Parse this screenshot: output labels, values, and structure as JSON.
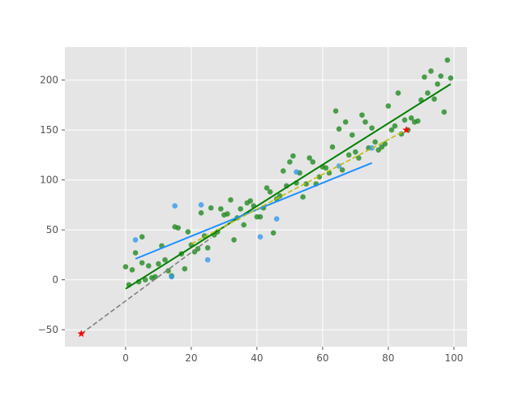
{
  "chart_data": {
    "type": "scatter",
    "title": "",
    "xlabel": "",
    "ylabel": "",
    "xlim": [
      -18.5,
      104
    ],
    "ylim": [
      -67,
      233
    ],
    "x_ticks": [
      0,
      20,
      40,
      60,
      80,
      100
    ],
    "y_ticks": [
      -50,
      0,
      50,
      100,
      150,
      200
    ],
    "x_tick_labels": [
      "0",
      "20",
      "40",
      "60",
      "80",
      "100"
    ],
    "y_tick_labels": [
      "−50",
      "0",
      "50",
      "100",
      "150",
      "200"
    ],
    "grid": true,
    "style": "ggplot",
    "colors": {
      "background": "#e5e5e5",
      "grid": "#ffffff",
      "tick_label": "#555555",
      "green_points": "#228b22",
      "blue_points": "#3399ee",
      "green_line": "#008000",
      "blue_line": "#1e90ff",
      "yellow_dashed": "#bfbf00",
      "gray_dashed": "#808080",
      "star": "#ff0000"
    },
    "series": [
      {
        "kind": "scatter",
        "color_key": "green_points",
        "points": [
          [
            0,
            13
          ],
          [
            1,
            -5
          ],
          [
            2,
            10
          ],
          [
            3,
            27
          ],
          [
            4,
            -2
          ],
          [
            5,
            17
          ],
          [
            5,
            43
          ],
          [
            6,
            0
          ],
          [
            7,
            14
          ],
          [
            8,
            2
          ],
          [
            9,
            3
          ],
          [
            10,
            16
          ],
          [
            11,
            34
          ],
          [
            12,
            20
          ],
          [
            13,
            9
          ],
          [
            14,
            4
          ],
          [
            15,
            53
          ],
          [
            16,
            52
          ],
          [
            17,
            26
          ],
          [
            18,
            11
          ],
          [
            19,
            48
          ],
          [
            20,
            35
          ],
          [
            21,
            28
          ],
          [
            22,
            31
          ],
          [
            23,
            67
          ],
          [
            24,
            44
          ],
          [
            25,
            32
          ],
          [
            26,
            72
          ],
          [
            27,
            45
          ],
          [
            28,
            48
          ],
          [
            29,
            71
          ],
          [
            30,
            65
          ],
          [
            31,
            66
          ],
          [
            32,
            80
          ],
          [
            33,
            40
          ],
          [
            34,
            62
          ],
          [
            35,
            71
          ],
          [
            36,
            55
          ],
          [
            37,
            77
          ],
          [
            38,
            79
          ],
          [
            39,
            74
          ],
          [
            40,
            63
          ],
          [
            41,
            63
          ],
          [
            42,
            72
          ],
          [
            43,
            92
          ],
          [
            44,
            88
          ],
          [
            45,
            47
          ],
          [
            46,
            81
          ],
          [
            47,
            84
          ],
          [
            48,
            109
          ],
          [
            49,
            94
          ],
          [
            50,
            118
          ],
          [
            51,
            124
          ],
          [
            52,
            97
          ],
          [
            53,
            107
          ],
          [
            54,
            83
          ],
          [
            55,
            96
          ],
          [
            56,
            122
          ],
          [
            57,
            118
          ],
          [
            58,
            96
          ],
          [
            59,
            103
          ],
          [
            60,
            113
          ],
          [
            61,
            112
          ],
          [
            62,
            107
          ],
          [
            63,
            133
          ],
          [
            64,
            169
          ],
          [
            65,
            151
          ],
          [
            66,
            110
          ],
          [
            67,
            158
          ],
          [
            68,
            125
          ],
          [
            69,
            145
          ],
          [
            70,
            128
          ],
          [
            71,
            122
          ],
          [
            72,
            165
          ],
          [
            73,
            158
          ],
          [
            74,
            132
          ],
          [
            75,
            152
          ],
          [
            76,
            138
          ],
          [
            77,
            130
          ],
          [
            78,
            133
          ],
          [
            79,
            136
          ],
          [
            80,
            174
          ],
          [
            81,
            150
          ],
          [
            82,
            154
          ],
          [
            83,
            187
          ],
          [
            84,
            146
          ],
          [
            85,
            160
          ],
          [
            86,
            150
          ],
          [
            87,
            162
          ],
          [
            88,
            158
          ],
          [
            89,
            159
          ],
          [
            90,
            180
          ],
          [
            91,
            203
          ],
          [
            92,
            187
          ],
          [
            93,
            209
          ],
          [
            94,
            181
          ],
          [
            95,
            196
          ],
          [
            96,
            204
          ],
          [
            97,
            168
          ],
          [
            98,
            220
          ],
          [
            99,
            202
          ]
        ]
      },
      {
        "kind": "scatter",
        "color_key": "blue_points",
        "points": [
          [
            3,
            40
          ],
          [
            14,
            3
          ],
          [
            15,
            74
          ],
          [
            23,
            75
          ],
          [
            25,
            20
          ],
          [
            41,
            43
          ],
          [
            46,
            61
          ],
          [
            52,
            108
          ],
          [
            65,
            114
          ],
          [
            75,
            132
          ]
        ]
      },
      {
        "kind": "line",
        "color_key": "green_line",
        "dashed": false,
        "points": [
          [
            0,
            -9
          ],
          [
            99,
            196
          ]
        ]
      },
      {
        "kind": "line",
        "color_key": "blue_line",
        "dashed": false,
        "points": [
          [
            3,
            21
          ],
          [
            75,
            117
          ]
        ]
      },
      {
        "kind": "line",
        "color_key": "yellow_dashed",
        "dashed": true,
        "points": [
          [
            20,
            36
          ],
          [
            85.5,
            150
          ]
        ]
      },
      {
        "kind": "line",
        "color_key": "gray_dashed",
        "dashed": true,
        "points": [
          [
            -13.5,
            -54
          ],
          [
            26,
            42
          ]
        ]
      },
      {
        "kind": "star",
        "color_key": "star",
        "points": [
          [
            -13.5,
            -54
          ],
          [
            85.5,
            150
          ]
        ]
      }
    ]
  }
}
